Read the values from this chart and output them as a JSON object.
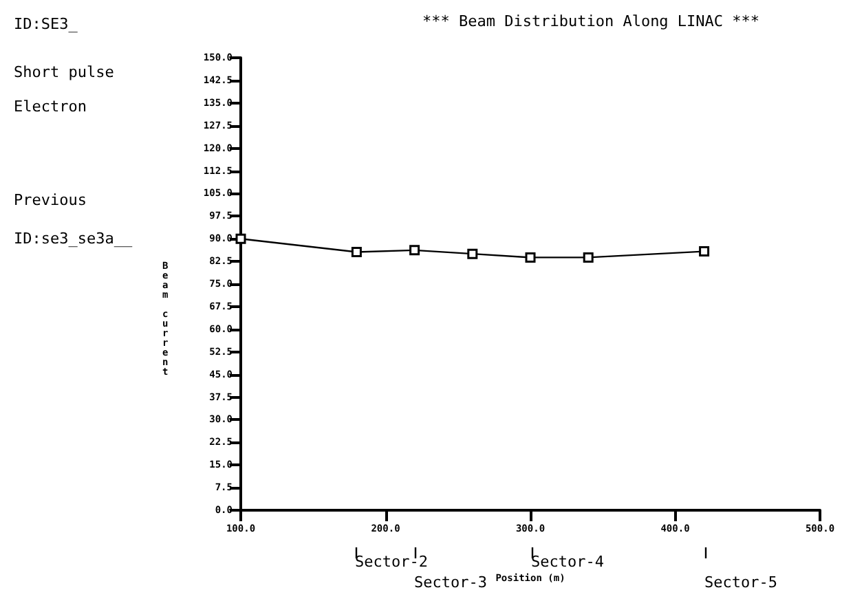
{
  "chart_data": {
    "type": "line",
    "title": "*** Beam Distribution Along LINAC ***",
    "xlabel": "Position (m)",
    "ylabel": "Beam current",
    "annotations": [
      "ID:SE3_",
      "Short pulse",
      "Electron",
      "Previous",
      "ID:se3_se3a__",
      "Sector-2",
      "Sector-3",
      "Sector-4",
      "Sector-5"
    ],
    "x": [
      100,
      180,
      220,
      260,
      300,
      340,
      420
    ],
    "series": [
      {
        "color": "#000000",
        "values": [
          90,
          85.6,
          86.2,
          85,
          83.8,
          83.8,
          85.8
        ]
      }
    ],
    "xlim": [
      100,
      500
    ],
    "xticks": [
      {
        "value": 100,
        "label": "100.0"
      },
      {
        "value": 200,
        "label": "200.0"
      },
      {
        "value": 300,
        "label": "300.0"
      },
      {
        "value": 400,
        "label": "400.0"
      },
      {
        "value": 500,
        "label": "500.0"
      }
    ],
    "ylim": [
      0,
      150
    ],
    "yticks": [
      {
        "value": 0,
        "label": "0.0"
      },
      7.5,
      {
        "value": 15,
        "label": "15.0"
      },
      22.5,
      {
        "value": 30,
        "label": "30.0"
      },
      37.5,
      {
        "value": 45,
        "label": "45.0"
      },
      52.5,
      {
        "value": 60,
        "label": "60.0"
      },
      67.5,
      {
        "value": 75,
        "label": "75.0"
      },
      82.5,
      {
        "value": 90,
        "label": "90.0"
      },
      97.5,
      {
        "value": 105,
        "label": "105.0"
      },
      112.5,
      {
        "value": 120,
        "label": "120.0"
      },
      127.5,
      {
        "value": 135,
        "label": "135.0"
      },
      142.5,
      {
        "value": 150,
        "label": "150.0"
      }
    ],
    "grid": false,
    "marker": "square",
    "line_style": "solid"
  }
}
